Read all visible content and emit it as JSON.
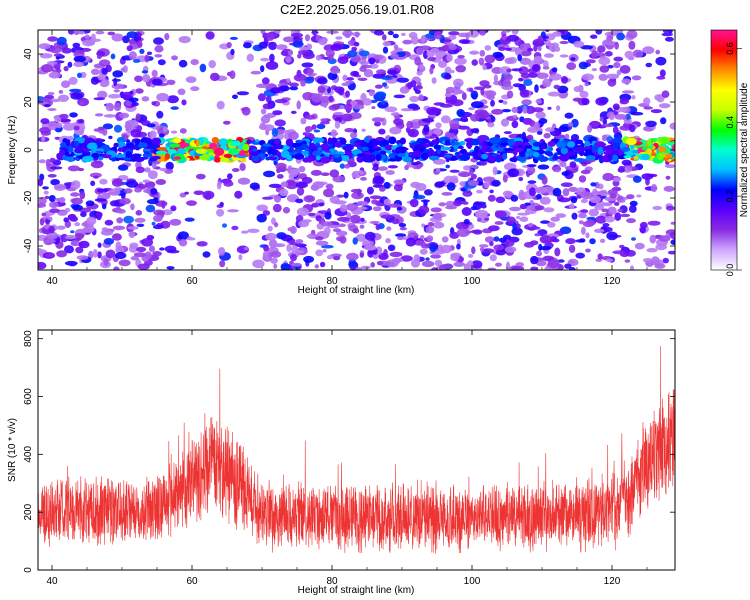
{
  "title": "C2E2.2025.056.19.01.R08",
  "chart_data": [
    {
      "type": "heatmap",
      "xlabel": "Height of straight line (km)",
      "ylabel": "Frequency (Hz)",
      "xlim": [
        38,
        129
      ],
      "ylim": [
        -50,
        50
      ],
      "xticks": [
        40,
        60,
        80,
        100,
        120
      ],
      "yticks": [
        -40,
        -20,
        0,
        20,
        40
      ],
      "colorbar": {
        "label": "Normalized spectral amplitude",
        "range": [
          0,
          0.65
        ],
        "ticks": [
          0.0,
          0.2,
          0.4,
          0.6
        ],
        "colormap": [
          "#ffffff",
          "#cfa8ff",
          "#8a2be2",
          "#5a00ff",
          "#0000ff",
          "#00bfff",
          "#00ffd0",
          "#00ff00",
          "#c8ff00",
          "#ffff00",
          "#ff8c00",
          "#ff0000",
          "#ff1493"
        ]
      },
      "features": {
        "signal_band_center_hz": 0,
        "signal_band_halfwidth_hz": 3,
        "strong_signal_x_ranges": [
          [
            55,
            68
          ],
          [
            122,
            129
          ]
        ],
        "sparse_noise_x_range": [
          56,
          70
        ]
      }
    },
    {
      "type": "line",
      "xlabel": "Height of straight line (km)",
      "ylabel": "SNR (10 * v/v)",
      "xlim": [
        38,
        129
      ],
      "ylim": [
        0,
        830
      ],
      "xticks": [
        40,
        60,
        80,
        100,
        120
      ],
      "yticks": [
        0,
        200,
        400,
        600,
        800
      ],
      "color": "#ee3333",
      "profile": {
        "x": [
          38,
          45,
          55,
          58,
          60,
          62,
          64,
          66,
          68,
          70,
          72,
          80,
          90,
          100,
          110,
          118,
          121,
          123,
          125,
          127,
          129
        ],
        "center": [
          200,
          200,
          205,
          260,
          320,
          360,
          350,
          310,
          250,
          200,
          185,
          180,
          180,
          180,
          180,
          190,
          220,
          280,
          360,
          420,
          470
        ],
        "spread": [
          110,
          110,
          110,
          130,
          150,
          170,
          170,
          150,
          130,
          115,
          110,
          110,
          110,
          110,
          110,
          115,
          125,
          140,
          160,
          180,
          190
        ]
      }
    }
  ]
}
